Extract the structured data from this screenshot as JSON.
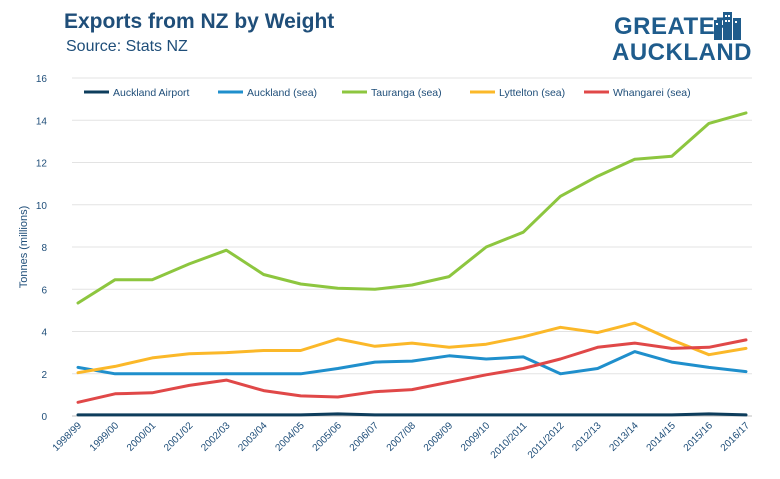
{
  "header": {
    "title": "Exports from NZ by Weight",
    "subtitle": "Source: Stats NZ"
  },
  "logo": {
    "line1": "GREATER",
    "line2": "AUCKLAND",
    "color": "#1f5c8c"
  },
  "chart_data": {
    "type": "line",
    "title": "Exports from NZ by Weight",
    "subtitle": "Source: Stats NZ",
    "xlabel": "",
    "ylabel": "Tonnes (millions)",
    "ylim": [
      0,
      16
    ],
    "yticks": [
      "0",
      "2",
      "4",
      "6",
      "8",
      "10",
      "12",
      "14",
      "16"
    ],
    "grid": true,
    "legend_position": "top",
    "categories": [
      "1998/99",
      "1999/00",
      "2000/01",
      "2001/02",
      "2002/03",
      "2003/04",
      "2004/05",
      "2005/06",
      "2006/07",
      "2007/08",
      "2008/09",
      "2009/10",
      "2010/2011",
      "2011/2012",
      "2012/13",
      "2013/14",
      "2014/15",
      "2015/16",
      "2016/17"
    ],
    "series": [
      {
        "name": "Auckland Airport",
        "color": "#0d3d5c",
        "values": [
          0.05,
          0.05,
          0.05,
          0.05,
          0.05,
          0.05,
          0.05,
          0.1,
          0.05,
          0.05,
          0.05,
          0.05,
          0.05,
          0.05,
          0.05,
          0.05,
          0.05,
          0.1,
          0.05
        ]
      },
      {
        "name": "Auckland (sea)",
        "color": "#1f8fcc",
        "values": [
          2.3,
          2.0,
          2.0,
          2.0,
          2.0,
          2.0,
          2.0,
          2.25,
          2.55,
          2.6,
          2.85,
          2.7,
          2.8,
          2.0,
          2.25,
          3.05,
          2.55,
          2.3,
          2.1
        ]
      },
      {
        "name": "Tauranga (sea)",
        "color": "#8dc63f",
        "values": [
          5.35,
          6.45,
          6.45,
          7.2,
          7.85,
          6.7,
          6.25,
          6.05,
          6.0,
          6.2,
          6.6,
          8.0,
          8.7,
          10.4,
          11.35,
          12.15,
          12.3,
          13.85,
          14.35
        ]
      },
      {
        "name": "Lyttelton (sea)",
        "color": "#fbb829",
        "values": [
          2.05,
          2.35,
          2.75,
          2.95,
          3.0,
          3.1,
          3.1,
          3.65,
          3.3,
          3.45,
          3.25,
          3.4,
          3.75,
          4.2,
          3.95,
          4.4,
          3.6,
          2.9,
          3.2
        ]
      },
      {
        "name": "Whangarei (sea)",
        "color": "#e04848",
        "values": [
          0.65,
          1.05,
          1.1,
          1.45,
          1.7,
          1.2,
          0.95,
          0.9,
          1.15,
          1.25,
          1.6,
          1.95,
          2.25,
          2.7,
          3.25,
          3.45,
          3.2,
          3.25,
          3.6
        ]
      }
    ]
  }
}
